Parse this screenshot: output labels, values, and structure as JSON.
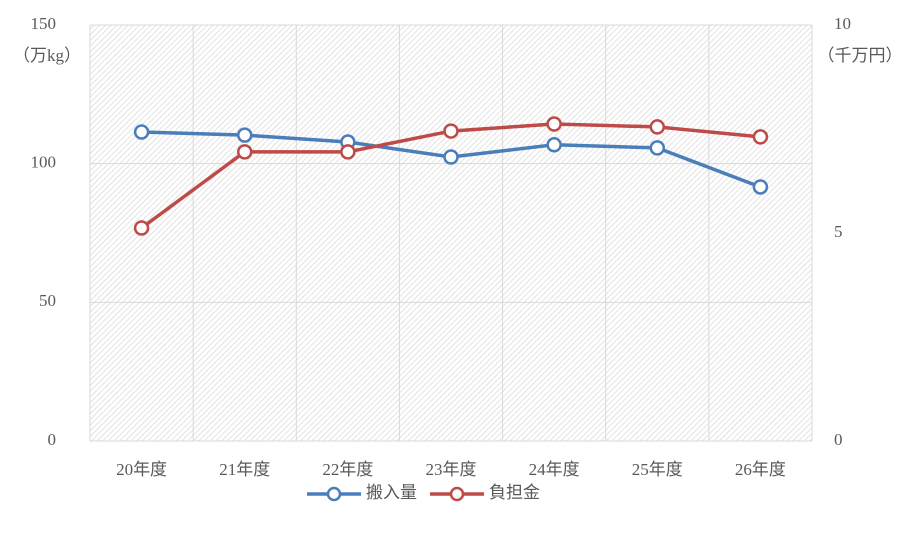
{
  "chart_data": {
    "type": "line",
    "y_label": "（万kg）",
    "y2_label": "（千万円）",
    "categories": [
      "20年度",
      "21年度",
      "22年度",
      "23年度",
      "24年度",
      "25年度",
      "26年度"
    ],
    "series": [
      {
        "name": "搬入量",
        "color": "#4a7ebb",
        "values": [
          111.4,
          110.3,
          107.8,
          102.4,
          106.8,
          105.7,
          91.6
        ]
      },
      {
        "name": "負担金",
        "color": "#be4b48",
        "axis": "y2",
        "values": [
          5.12,
          6.95,
          6.95,
          7.45,
          7.62,
          7.55,
          7.31
        ]
      }
    ],
    "ylim": [
      0,
      150
    ],
    "yticks": [
      0,
      50,
      100,
      150
    ],
    "y2lim": [
      0,
      10
    ],
    "y2ticks": [
      0,
      5,
      10
    ],
    "grid": true,
    "legend": "bottom"
  }
}
